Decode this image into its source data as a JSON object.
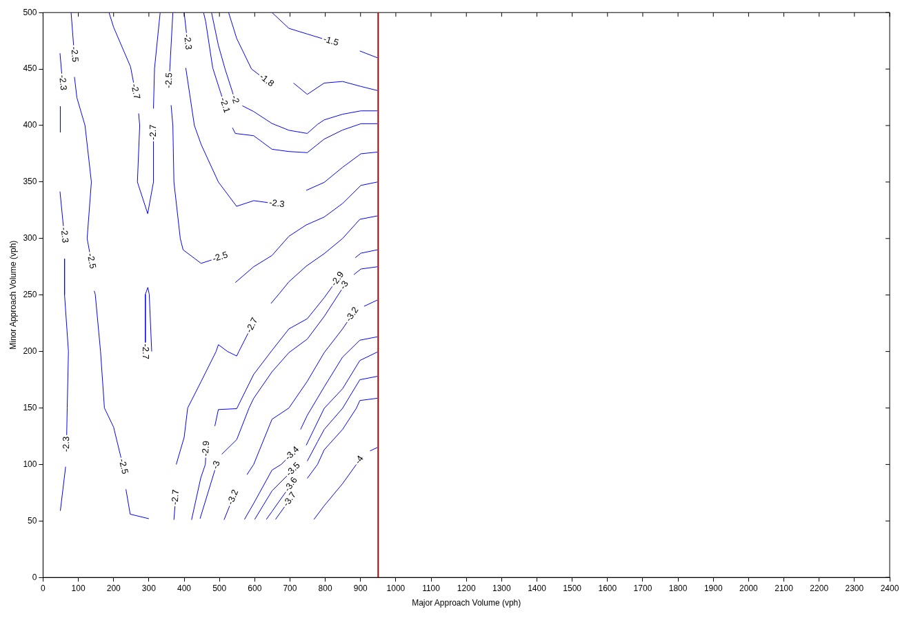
{
  "chart_data": {
    "type": "line",
    "xlabel": "Major Approach Volume (vph)",
    "ylabel": "Minor Approach Volume (vph)",
    "xlim": [
      0,
      2400
    ],
    "xticks": [
      0,
      100,
      200,
      300,
      400,
      500,
      600,
      700,
      800,
      900,
      1000,
      1100,
      1200,
      1300,
      1400,
      1500,
      1600,
      1700,
      1800,
      1900,
      2000,
      2100,
      2200,
      2300,
      2400
    ],
    "ylim": [
      0,
      500
    ],
    "yticks": [
      0,
      50,
      100,
      150,
      200,
      250,
      300,
      350,
      400,
      450,
      500
    ],
    "grid": false,
    "legend": false,
    "line_style": "solid",
    "series": [
      {
        "name": "-2.5",
        "color": "#0000ff",
        "x": [
          79.5,
          86.6
        ],
        "values": [
          500,
          471
        ]
      },
      {
        "name": "-2.5",
        "color": "#0000ff",
        "x": [
          89,
          96,
          119,
          137,
          125,
          132
        ],
        "values": [
          443,
          424.6,
          400,
          350,
          300,
          288
        ]
      },
      {
        "name": "-2.5",
        "color": "#0000ff",
        "x": [
          145,
          148,
          163,
          174,
          200,
          221
        ],
        "values": [
          253.6,
          250.6,
          200,
          150,
          133,
          106
        ]
      },
      {
        "color": "#0000ff",
        "x": [
          235,
          247,
          300
        ],
        "values": [
          78,
          56,
          52
        ]
      },
      {
        "name": "-2.3",
        "color": "#0000ff",
        "x": [
          48,
          53
        ],
        "values": [
          464,
          446
        ]
      },
      {
        "color": "#0000ff",
        "x": [
          49,
          49
        ],
        "values": [
          417,
          394
        ]
      },
      {
        "name": "-2.3",
        "color": "#0000ff",
        "x": [
          48,
          57.6
        ],
        "values": [
          341.6,
          311
        ]
      },
      {
        "name": "-2.3",
        "color": "#0000ff",
        "x": [
          61,
          61,
          72,
          68.5,
          67
        ],
        "values": [
          282,
          250,
          200,
          150,
          126
        ]
      },
      {
        "color": "#0000ff",
        "x": [
          64,
          49
        ],
        "values": [
          98,
          59
        ]
      },
      {
        "name": "-2.7",
        "color": "#0000ff",
        "x": [
          187,
          200,
          248,
          256.6
        ],
        "values": [
          500,
          487,
          452,
          438
        ]
      },
      {
        "name": "-2.7",
        "color": "#0000ff",
        "x": [
          271,
          274,
          267.5,
          296.6,
          313,
          313
        ],
        "values": [
          410.7,
          400,
          350,
          322,
          350,
          386
        ]
      },
      {
        "color": "#0000ff",
        "x": [
          313,
          316,
          332
        ],
        "values": [
          415,
          450.5,
          500
        ]
      },
      {
        "name": "-2.7",
        "color": "#0000ff",
        "x": [
          308,
          301,
          297,
          290,
          290
        ],
        "values": [
          200,
          250.6,
          256.7,
          250.6,
          208
        ]
      },
      {
        "name": "-2.5",
        "color": "#0000ff",
        "x": [
          368,
          359
        ],
        "values": [
          500,
          448
        ]
      },
      {
        "name": "-2.5",
        "color": "#0000ff",
        "x": [
          363,
          368,
          371,
          389,
          397,
          448,
          477.6
        ],
        "values": [
          418,
          400,
          350,
          300,
          290,
          278,
          281
        ]
      },
      {
        "color": "#0000ff",
        "x": [
          545,
          597,
          649,
          697,
          746,
          797,
          849,
          901,
          947.5
        ],
        "values": [
          261,
          275,
          285,
          302,
          312,
          319,
          331,
          347,
          350
        ]
      },
      {
        "name": "-2.3",
        "color": "#0000ff",
        "x": [
          400,
          406.5
        ],
        "values": [
          500,
          482
        ]
      },
      {
        "name": "-2.3",
        "color": "#0000ff",
        "x": [
          404.6,
          429,
          448.5,
          497,
          548.6,
          597,
          637
        ],
        "values": [
          451,
          400,
          383,
          350,
          328.5,
          333.5,
          331.8
        ]
      },
      {
        "color": "#0000ff",
        "x": [
          746,
          797,
          849,
          901,
          947.5
        ],
        "values": [
          342.6,
          349.7,
          363,
          375,
          376.5
        ]
      },
      {
        "name": "-2.1",
        "color": "#0000ff",
        "x": [
          455,
          461,
          481,
          507
        ],
        "values": [
          500,
          492,
          451,
          425.6
        ]
      },
      {
        "color": "#0000ff",
        "x": [
          537,
          545,
          597,
          649,
          697,
          749,
          797,
          849,
          901,
          947.5
        ],
        "values": [
          398,
          393,
          391,
          379,
          377,
          376,
          388,
          396,
          401.6,
          401.6
        ]
      },
      {
        "name": "-2",
        "color": "#0000ff",
        "x": [
          477.6,
          497,
          516,
          539
        ],
        "values": [
          500,
          471,
          450,
          427.6
        ]
      },
      {
        "color": "#0000ff",
        "x": [
          565,
          597,
          649,
          697,
          749,
          778,
          797,
          849,
          901,
          947.5
        ],
        "values": [
          417.5,
          412.4,
          401.8,
          395.8,
          393,
          401,
          405,
          410,
          413,
          413
        ]
      },
      {
        "name": "-1.8",
        "color": "#0000ff",
        "x": [
          526,
          549,
          591,
          613
        ],
        "values": [
          500,
          477,
          450,
          444.8
        ]
      },
      {
        "color": "#0000ff",
        "x": [
          710,
          749,
          797,
          849,
          901,
          947.5
        ],
        "values": [
          437.6,
          427.6,
          437.6,
          439,
          434.6,
          431
        ]
      },
      {
        "name": "-1.5",
        "color": "#0000ff",
        "x": [
          649,
          697,
          749,
          791
        ],
        "values": [
          500,
          486,
          481,
          477
        ]
      },
      {
        "color": "#0000ff",
        "x": [
          898,
          947.5
        ],
        "values": [
          466,
          460
        ]
      },
      {
        "name": "-2.7",
        "color": "#0000ff",
        "x": [
          371,
          374
        ],
        "values": [
          51,
          63
        ]
      },
      {
        "name": "-2.7",
        "color": "#0000ff",
        "x": [
          377.5,
          400,
          410,
          448.5,
          490.5,
          497,
          523,
          549,
          555,
          581
        ],
        "values": [
          100,
          124,
          150,
          173.7,
          200,
          206,
          200,
          196,
          200,
          216
        ]
      },
      {
        "color": "#0000ff",
        "x": [
          646,
          668,
          697,
          746,
          797,
          849,
          898,
          947.5
        ],
        "values": [
          242.5,
          250.6,
          261.7,
          275.5,
          286.6,
          300,
          317,
          320
        ]
      },
      {
        "name": "-2.9",
        "color": "#0000ff",
        "x": [
          421,
          447,
          460,
          461
        ],
        "values": [
          51,
          88,
          100,
          106
        ]
      },
      {
        "name": "-2.9",
        "color": "#0000ff",
        "x": [
          487,
          497,
          549,
          597,
          649,
          697,
          749,
          797,
          820
        ],
        "values": [
          134,
          148.6,
          149.4,
          179.7,
          201,
          220,
          229,
          247.6,
          257.6
        ]
      },
      {
        "color": "#0000ff",
        "x": [
          885,
          901,
          947.5
        ],
        "values": [
          283,
          287,
          290
        ]
      },
      {
        "name": "-3",
        "color": "#0000ff",
        "x": [
          445,
          487
        ],
        "values": [
          52,
          95
        ]
      },
      {
        "name": "-3",
        "color": "#0000ff",
        "x": [
          506.6,
          549,
          584,
          597,
          649,
          697,
          749,
          797,
          846
        ],
        "values": [
          109,
          122,
          150,
          158.5,
          182,
          199,
          211,
          231,
          254.6
        ]
      },
      {
        "color": "#0000ff",
        "x": [
          881,
          901,
          947.5
        ],
        "values": [
          268,
          273,
          275
        ]
      },
      {
        "name": "-3.2",
        "color": "#0000ff",
        "x": [
          513,
          529
        ],
        "values": [
          51,
          63.4
        ]
      },
      {
        "name": "-3.2",
        "color": "#0000ff",
        "x": [
          578,
          597,
          649,
          697,
          749,
          797,
          849,
          862
        ],
        "values": [
          91,
          100,
          140,
          150,
          173.6,
          199,
          220,
          226
        ]
      },
      {
        "color": "#0000ff",
        "x": [
          910,
          947.5
        ],
        "values": [
          240,
          245.5
        ]
      },
      {
        "name": "-3.4",
        "color": "#0000ff",
        "x": [
          571,
          597,
          649,
          675,
          688
        ],
        "values": [
          51.4,
          65.5,
          95,
          100,
          104
        ]
      },
      {
        "color": "#0000ff",
        "x": [
          730,
          749,
          797,
          849,
          898,
          947.5
        ],
        "values": [
          131,
          143.5,
          168.7,
          195,
          210,
          213
        ]
      },
      {
        "name": "-3.5",
        "color": "#0000ff",
        "x": [
          600,
          649,
          691
        ],
        "values": [
          51.4,
          76.6,
          89.8
        ]
      },
      {
        "color": "#0000ff",
        "x": [
          746,
          797,
          849,
          898,
          947.5
        ],
        "values": [
          117,
          149.7,
          167,
          192,
          199.5
        ]
      },
      {
        "name": "-3.6",
        "color": "#0000ff",
        "x": [
          633,
          649,
          688
        ],
        "values": [
          51.4,
          58.4,
          75.6
        ]
      },
      {
        "color": "#0000ff",
        "x": [
          749,
          778,
          797,
          849,
          898,
          947.5
        ],
        "values": [
          103,
          120,
          131,
          149.7,
          175,
          178
        ]
      },
      {
        "name": "-3.7",
        "color": "#0000ff",
        "x": [
          659,
          684.5
        ],
        "values": [
          51.4,
          62.5
        ]
      },
      {
        "color": "#0000ff",
        "x": [
          749,
          778,
          797,
          849,
          888,
          898,
          947.5
        ],
        "values": [
          87.7,
          100,
          113,
          131,
          149.7,
          156.6,
          158.6
        ]
      },
      {
        "name": "-4",
        "color": "#0000ff",
        "x": [
          768,
          797,
          849,
          888
        ],
        "values": [
          51.4,
          63.5,
          83,
          100
        ]
      },
      {
        "color": "#0000ff",
        "x": [
          927,
          947.5
        ],
        "values": [
          112,
          115
        ]
      }
    ],
    "ref_lines": [
      {
        "axis": "x",
        "value": 950,
        "color": "#aa0000"
      }
    ]
  }
}
